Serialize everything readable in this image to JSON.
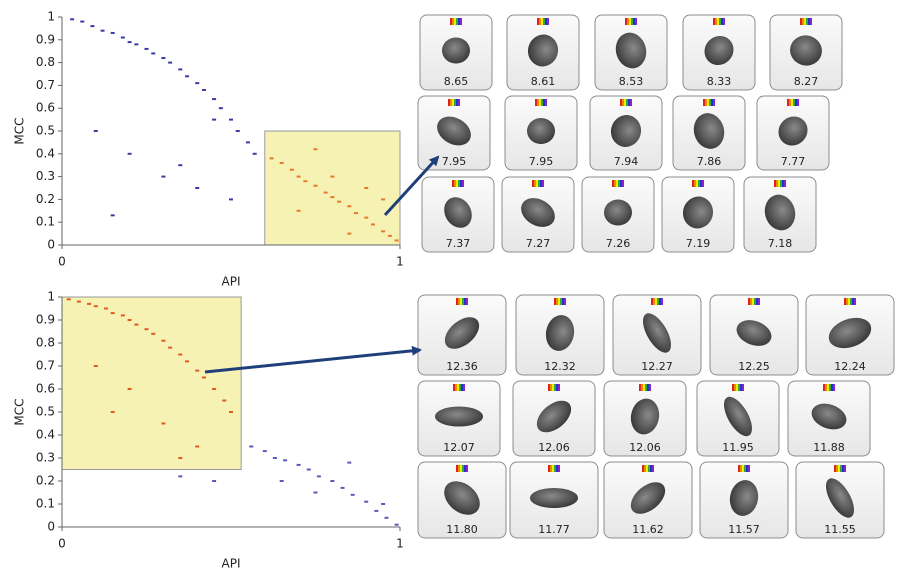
{
  "chart_data": [
    {
      "type": "scatter",
      "xlabel": "API",
      "ylabel": "MCC",
      "xlim": [
        0,
        1
      ],
      "ylim": [
        0,
        1
      ],
      "xticks": [
        0,
        1
      ],
      "yticks": [
        0,
        0.1,
        0.2,
        0.3,
        0.4,
        0.5,
        0.6,
        0.7,
        0.8,
        0.9,
        1
      ],
      "gate": {
        "x": [
          0.6,
          1
        ],
        "y": [
          0,
          0.5
        ],
        "color": "#f6f2b4"
      },
      "series": [
        {
          "color": "#3b3ba6",
          "x": [
            0.03,
            0.06,
            0.09,
            0.12,
            0.15,
            0.18,
            0.2,
            0.22,
            0.25,
            0.27,
            0.3,
            0.32,
            0.35,
            0.37,
            0.4,
            0.42,
            0.45,
            0.47,
            0.5,
            0.52,
            0.55,
            0.57,
            0.1,
            0.2,
            0.3,
            0.4,
            0.45,
            0.5,
            0.15,
            0.35
          ],
          "y": [
            0.99,
            0.98,
            0.96,
            0.94,
            0.93,
            0.91,
            0.89,
            0.88,
            0.86,
            0.84,
            0.82,
            0.8,
            0.77,
            0.74,
            0.71,
            0.68,
            0.64,
            0.6,
            0.55,
            0.5,
            0.45,
            0.4,
            0.5,
            0.4,
            0.3,
            0.25,
            0.55,
            0.2,
            0.13,
            0.35
          ]
        },
        {
          "color": "#e8782e",
          "x": [
            0.62,
            0.65,
            0.68,
            0.7,
            0.72,
            0.75,
            0.78,
            0.8,
            0.82,
            0.85,
            0.87,
            0.9,
            0.92,
            0.95,
            0.97,
            0.99,
            0.7,
            0.8,
            0.9,
            0.75,
            0.85,
            0.95
          ],
          "y": [
            0.38,
            0.36,
            0.33,
            0.3,
            0.28,
            0.26,
            0.23,
            0.21,
            0.19,
            0.17,
            0.14,
            0.12,
            0.09,
            0.06,
            0.04,
            0.02,
            0.15,
            0.3,
            0.25,
            0.42,
            0.05,
            0.2
          ]
        }
      ]
    },
    {
      "type": "scatter",
      "xlabel": "API",
      "ylabel": "MCC",
      "xlim": [
        0,
        1
      ],
      "ylim": [
        0,
        1
      ],
      "xticks": [
        0,
        1
      ],
      "yticks": [
        0,
        0.1,
        0.2,
        0.3,
        0.4,
        0.5,
        0.6,
        0.7,
        0.8,
        0.9,
        1
      ],
      "gate": {
        "x": [
          0,
          0.53
        ],
        "y": [
          0.25,
          1
        ],
        "color": "#f6f2b4"
      },
      "series": [
        {
          "color": "#e05a1e",
          "x": [
            0.02,
            0.05,
            0.08,
            0.1,
            0.13,
            0.15,
            0.18,
            0.2,
            0.22,
            0.25,
            0.27,
            0.3,
            0.32,
            0.35,
            0.37,
            0.4,
            0.42,
            0.45,
            0.48,
            0.5,
            0.1,
            0.2,
            0.3,
            0.4,
            0.15,
            0.35
          ],
          "y": [
            0.99,
            0.98,
            0.97,
            0.96,
            0.95,
            0.93,
            0.92,
            0.9,
            0.88,
            0.86,
            0.84,
            0.81,
            0.78,
            0.75,
            0.72,
            0.68,
            0.65,
            0.6,
            0.55,
            0.5,
            0.7,
            0.6,
            0.45,
            0.35,
            0.5,
            0.3
          ]
        },
        {
          "color": "#5a5ab8",
          "x": [
            0.56,
            0.6,
            0.63,
            0.66,
            0.7,
            0.73,
            0.76,
            0.8,
            0.83,
            0.86,
            0.9,
            0.93,
            0.96,
            0.99,
            0.65,
            0.75,
            0.85,
            0.95,
            0.35,
            0.45
          ],
          "y": [
            0.35,
            0.33,
            0.3,
            0.29,
            0.27,
            0.25,
            0.22,
            0.2,
            0.17,
            0.14,
            0.11,
            0.07,
            0.04,
            0.01,
            0.2,
            0.15,
            0.28,
            0.1,
            0.22,
            0.2
          ]
        }
      ]
    }
  ],
  "galleries": [
    {
      "rows": [
        [
          "8.65",
          "8.61",
          "8.53",
          "8.33",
          "8.27"
        ],
        [
          "7.95",
          "7.95",
          "7.94",
          "7.86",
          "7.77"
        ],
        [
          "7.37",
          "7.27",
          "7.26",
          "7.19",
          "7.18"
        ]
      ]
    },
    {
      "rows": [
        [
          "12.36",
          "12.32",
          "12.27",
          "12.25",
          "12.24"
        ],
        [
          "12.07",
          "12.06",
          "12.06",
          "11.95",
          "11.88"
        ],
        [
          "11.80",
          "11.77",
          "11.62",
          "11.57",
          "11.55"
        ]
      ]
    }
  ]
}
